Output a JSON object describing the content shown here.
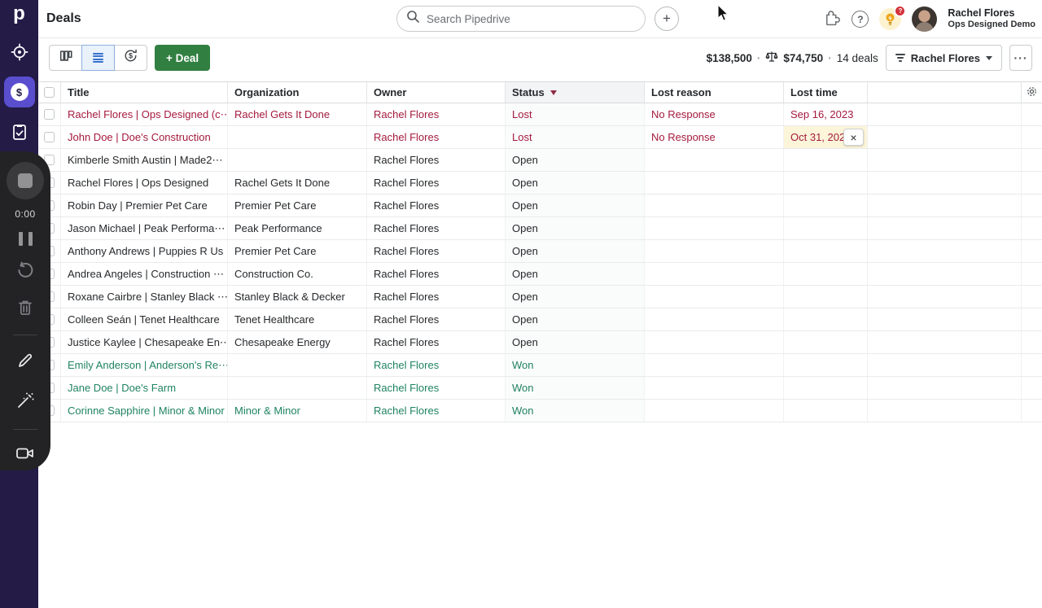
{
  "app": {
    "logo_letter": "p",
    "page_title": "Deals"
  },
  "topbar": {
    "search_placeholder": "Search Pipedrive",
    "user": {
      "name": "Rachel Flores",
      "company": "Ops Designed Demo"
    },
    "suggestions_badge": "?",
    "help_glyph": "?"
  },
  "recorder": {
    "time": "0:00"
  },
  "toolbar": {
    "add_deal_label": "+ Deal",
    "total_value": "$138,500",
    "weighted_value": "$74,750",
    "deals_count": "14 deals",
    "separator": "·",
    "filter_owner_label": "Rachel Flores",
    "more_label": "···"
  },
  "table": {
    "columns": {
      "title": "Title",
      "organization": "Organization",
      "owner": "Owner",
      "status": "Status",
      "lost_reason": "Lost reason",
      "lost_time": "Lost time"
    },
    "rows": [
      {
        "title": "Rachel Flores | Ops Designed (c⋯",
        "organization": "Rachel Gets It Done",
        "owner": "Rachel Flores",
        "status": "Lost",
        "lost_reason": "No Response",
        "lost_time": "Sep 16, 2023",
        "state": "lost",
        "editing": false
      },
      {
        "title": "John Doe | Doe's Construction",
        "organization": "",
        "owner": "Rachel Flores",
        "status": "Lost",
        "lost_reason": "No Response",
        "lost_time": "Oct 31, 2023",
        "state": "lost",
        "editing": true
      },
      {
        "title": "Kimberle Smith Austin | Made2⋯",
        "organization": "",
        "owner": "Rachel Flores",
        "status": "Open",
        "lost_reason": "",
        "lost_time": "",
        "state": "open",
        "editing": false
      },
      {
        "title": "Rachel Flores | Ops Designed",
        "organization": "Rachel Gets It Done",
        "owner": "Rachel Flores",
        "status": "Open",
        "lost_reason": "",
        "lost_time": "",
        "state": "open",
        "editing": false
      },
      {
        "title": "Robin Day | Premier Pet Care",
        "organization": "Premier Pet Care",
        "owner": "Rachel Flores",
        "status": "Open",
        "lost_reason": "",
        "lost_time": "",
        "state": "open",
        "editing": false
      },
      {
        "title": "Jason Michael | Peak Performa⋯",
        "organization": "Peak Performance",
        "owner": "Rachel Flores",
        "status": "Open",
        "lost_reason": "",
        "lost_time": "",
        "state": "open",
        "editing": false
      },
      {
        "title": "Anthony Andrews | Puppies R Us",
        "organization": "Premier Pet Care",
        "owner": "Rachel Flores",
        "status": "Open",
        "lost_reason": "",
        "lost_time": "",
        "state": "open",
        "editing": false
      },
      {
        "title": "Andrea Angeles | Construction ⋯",
        "organization": "Construction Co.",
        "owner": "Rachel Flores",
        "status": "Open",
        "lost_reason": "",
        "lost_time": "",
        "state": "open",
        "editing": false
      },
      {
        "title": "Roxane Cairbre | Stanley Black ⋯",
        "organization": "Stanley Black & Decker",
        "owner": "Rachel Flores",
        "status": "Open",
        "lost_reason": "",
        "lost_time": "",
        "state": "open",
        "editing": false
      },
      {
        "title": "Colleen Seán | Tenet Healthcare",
        "organization": "Tenet Healthcare",
        "owner": "Rachel Flores",
        "status": "Open",
        "lost_reason": "",
        "lost_time": "",
        "state": "open",
        "editing": false
      },
      {
        "title": "Justice Kaylee | Chesapeake En⋯",
        "organization": "Chesapeake Energy",
        "owner": "Rachel Flores",
        "status": "Open",
        "lost_reason": "",
        "lost_time": "",
        "state": "open",
        "editing": false
      },
      {
        "title": "Emily Anderson | Anderson's Re⋯",
        "organization": "",
        "owner": "Rachel Flores",
        "status": "Won",
        "lost_reason": "",
        "lost_time": "",
        "state": "won",
        "editing": false
      },
      {
        "title": "Jane Doe | Doe's Farm",
        "organization": "",
        "owner": "Rachel Flores",
        "status": "Won",
        "lost_reason": "",
        "lost_time": "",
        "state": "won",
        "editing": false
      },
      {
        "title": "Corinne Sapphire | Minor & Minor",
        "organization": "Minor & Minor",
        "owner": "Rachel Flores",
        "status": "Won",
        "lost_reason": "",
        "lost_time": "",
        "state": "won",
        "editing": false
      }
    ]
  },
  "icons": {
    "close_glyph": "×",
    "dollar_glyph": "$",
    "plus_glyph": "+"
  },
  "colors": {
    "lost": "#a41a3d",
    "won": "#1f8361",
    "open": "#26292c",
    "accent_active": "#5a4ecf",
    "deal_button_green": "#317f41",
    "highlight_cell": "#fcf5d9"
  }
}
